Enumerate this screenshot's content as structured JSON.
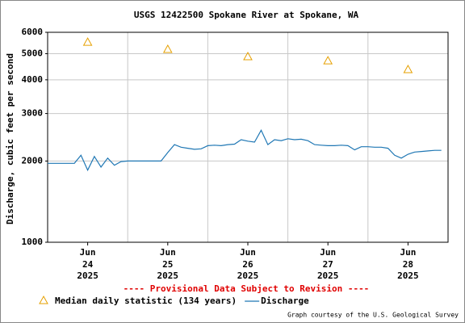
{
  "chart_data": {
    "type": "line",
    "title": "USGS 12422500 Spokane River at Spokane, WA",
    "ylabel": "Discharge, cubic feet per second",
    "annotation": "---- Provisional Data Subject to Revision ----",
    "credit": "Graph courtesy of the U.S. Geological Survey",
    "log_y": true,
    "grid": true,
    "legend": "bottom",
    "ylim": [
      1000,
      6000
    ],
    "yticks": [
      1000,
      2000,
      3000,
      4000,
      5000,
      6000
    ],
    "xlim": [
      "2025-06-24T00:00",
      "2025-06-29T00:00"
    ],
    "xticks": [
      {
        "value": "2025-06-24T12:00",
        "label": "Jun\n24\n2025"
      },
      {
        "value": "2025-06-25T12:00",
        "label": "Jun\n25\n2025"
      },
      {
        "value": "2025-06-26T12:00",
        "label": "Jun\n26\n2025"
      },
      {
        "value": "2025-06-27T12:00",
        "label": "Jun\n27\n2025"
      },
      {
        "value": "2025-06-28T12:00",
        "label": "Jun\n28\n2025"
      }
    ],
    "xgrid": [
      "2025-06-25T00:00",
      "2025-06-26T00:00",
      "2025-06-27T00:00",
      "2025-06-28T00:00"
    ],
    "series": [
      {
        "name": "Median daily statistic (134 years)",
        "color": "#e6a000",
        "marker": "triangle",
        "x": [
          "2025-06-24T12:00",
          "2025-06-25T12:00",
          "2025-06-26T12:00",
          "2025-06-27T12:00",
          "2025-06-28T12:00"
        ],
        "values": [
          5520,
          5190,
          4880,
          4710,
          4370
        ]
      },
      {
        "name": "Discharge",
        "color": "#1f77b4",
        "marker": "line",
        "x": [
          "2025-06-24T00:00",
          "2025-06-24T02:00",
          "2025-06-24T04:00",
          "2025-06-24T06:00",
          "2025-06-24T08:00",
          "2025-06-24T10:00",
          "2025-06-24T12:00",
          "2025-06-24T14:00",
          "2025-06-24T16:00",
          "2025-06-24T18:00",
          "2025-06-24T20:00",
          "2025-06-24T22:00",
          "2025-06-25T00:00",
          "2025-06-25T02:00",
          "2025-06-25T04:00",
          "2025-06-25T06:00",
          "2025-06-25T08:00",
          "2025-06-25T10:00",
          "2025-06-25T12:00",
          "2025-06-25T14:00",
          "2025-06-25T16:00",
          "2025-06-25T18:00",
          "2025-06-25T20:00",
          "2025-06-25T22:00",
          "2025-06-26T00:00",
          "2025-06-26T02:00",
          "2025-06-26T04:00",
          "2025-06-26T06:00",
          "2025-06-26T08:00",
          "2025-06-26T10:00",
          "2025-06-26T12:00",
          "2025-06-26T14:00",
          "2025-06-26T16:00",
          "2025-06-26T18:00",
          "2025-06-26T20:00",
          "2025-06-26T22:00",
          "2025-06-27T00:00",
          "2025-06-27T02:00",
          "2025-06-27T04:00",
          "2025-06-27T06:00",
          "2025-06-27T08:00",
          "2025-06-27T10:00",
          "2025-06-27T12:00",
          "2025-06-27T14:00",
          "2025-06-27T16:00",
          "2025-06-27T18:00",
          "2025-06-27T20:00",
          "2025-06-27T22:00",
          "2025-06-28T00:00",
          "2025-06-28T02:00",
          "2025-06-28T04:00",
          "2025-06-28T06:00",
          "2025-06-28T08:00",
          "2025-06-28T10:00",
          "2025-06-28T12:00",
          "2025-06-28T14:00",
          "2025-06-28T16:00",
          "2025-06-28T18:00",
          "2025-06-28T20:00",
          "2025-06-28T22:00"
        ],
        "values": [
          1960,
          1960,
          1960,
          1960,
          1960,
          2100,
          1850,
          2080,
          1900,
          2050,
          1930,
          1990,
          2000,
          2000,
          2000,
          2000,
          2000,
          2000,
          2150,
          2300,
          2250,
          2230,
          2210,
          2220,
          2280,
          2290,
          2280,
          2300,
          2310,
          2400,
          2370,
          2350,
          2600,
          2300,
          2400,
          2380,
          2420,
          2400,
          2410,
          2380,
          2300,
          2290,
          2280,
          2280,
          2290,
          2280,
          2200,
          2260,
          2260,
          2250,
          2250,
          2230,
          2100,
          2050,
          2120,
          2160,
          2170,
          2180,
          2190,
          2190
        ]
      }
    ]
  }
}
